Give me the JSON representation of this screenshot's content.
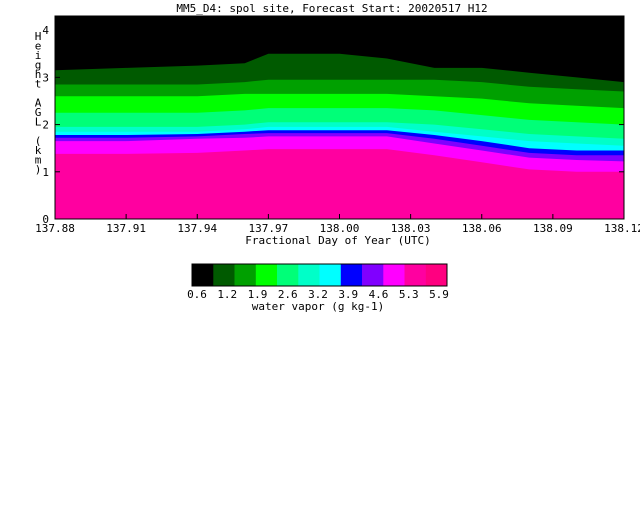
{
  "chart_data": {
    "type": "heatmap",
    "title": "MM5_D4: spol site,  Forecast Start: 20020517 H12",
    "xlabel": "Fractional Day of Year (UTC)",
    "ylabel": "Height AGL (km)",
    "xlim": [
      137.88,
      138.12
    ],
    "ylim": [
      0,
      4.3
    ],
    "x_ticks": [
      "137.88",
      "137.91",
      "137.94",
      "137.97",
      "138.00",
      "138.03",
      "138.06",
      "138.09",
      "138.12"
    ],
    "y_ticks": [
      "0",
      "1",
      "2",
      "3",
      "4"
    ],
    "colorbar": {
      "label": "water vapor (g kg-1)",
      "tick_labels": [
        "0.6",
        "1.2",
        "1.9",
        "2.6",
        "3.2",
        "3.9",
        "4.6",
        "5.3",
        "5.9"
      ],
      "colors": [
        "#000000",
        "#005a00",
        "#00a000",
        "#00ff00",
        "#00ff78",
        "#00ffc8",
        "#00ffff",
        "#0000ff",
        "#8000ff",
        "#ff00ff",
        "#ff00a0",
        "#ff0080"
      ]
    },
    "contour_boundaries": {
      "x": [
        137.88,
        137.91,
        137.94,
        137.96,
        137.97,
        138.0,
        138.02,
        138.04,
        138.06,
        138.08,
        138.1,
        138.12
      ],
      "top_of_black_layer_km": [
        3.15,
        3.2,
        3.25,
        3.3,
        3.5,
        3.5,
        3.4,
        3.2,
        3.2,
        3.1,
        3.0,
        2.9
      ],
      "top_of_dark_green_km": [
        2.85,
        2.85,
        2.85,
        2.9,
        2.95,
        2.95,
        2.95,
        2.95,
        2.9,
        2.8,
        2.75,
        2.7
      ],
      "top_of_green_km": [
        2.6,
        2.6,
        2.6,
        2.65,
        2.65,
        2.65,
        2.65,
        2.6,
        2.55,
        2.45,
        2.4,
        2.35
      ],
      "top_of_bright_green_km": [
        2.25,
        2.25,
        2.25,
        2.3,
        2.35,
        2.35,
        2.35,
        2.3,
        2.2,
        2.1,
        2.05,
        2.0
      ],
      "top_of_spring_green_km": [
        1.95,
        1.95,
        1.95,
        2.0,
        2.05,
        2.05,
        2.05,
        2.0,
        1.9,
        1.8,
        1.75,
        1.7
      ],
      "top_of_aquamarine_km": [
        1.85,
        1.85,
        1.85,
        1.9,
        1.95,
        1.95,
        1.95,
        1.85,
        1.75,
        1.65,
        1.6,
        1.55
      ],
      "top_of_cyan_km": [
        1.78,
        1.78,
        1.8,
        1.85,
        1.88,
        1.88,
        1.88,
        1.78,
        1.65,
        1.5,
        1.45,
        1.45
      ],
      "top_of_blue_km": [
        1.72,
        1.72,
        1.75,
        1.8,
        1.82,
        1.82,
        1.82,
        1.7,
        1.55,
        1.4,
        1.35,
        1.35
      ],
      "top_of_violet_km": [
        1.65,
        1.65,
        1.7,
        1.72,
        1.75,
        1.75,
        1.75,
        1.6,
        1.45,
        1.3,
        1.25,
        1.22
      ],
      "top_of_magenta_km": [
        1.38,
        1.38,
        1.4,
        1.45,
        1.48,
        1.48,
        1.48,
        1.35,
        1.2,
        1.05,
        1.0,
        1.0
      ]
    }
  }
}
